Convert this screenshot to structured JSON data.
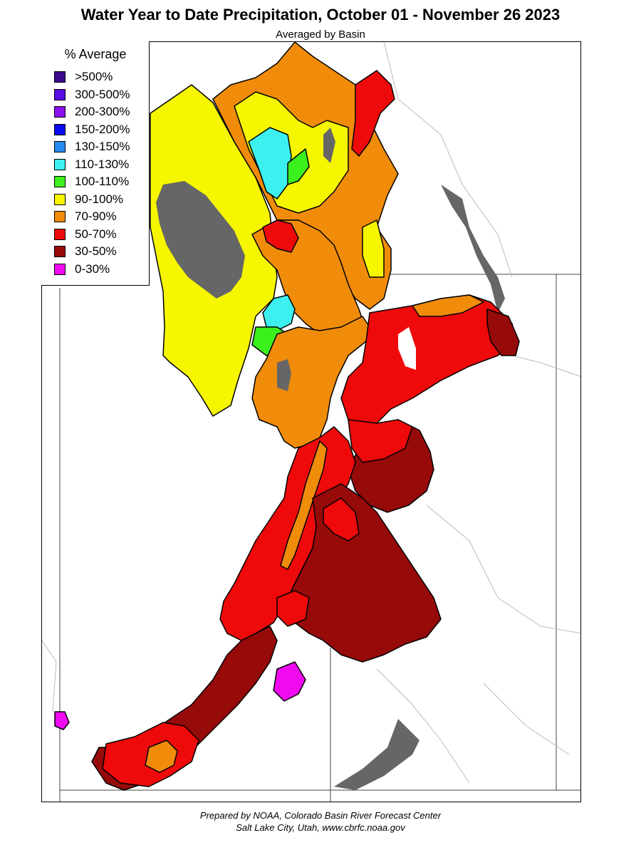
{
  "header": {
    "title": "Water Year to Date Precipitation, October 01  - November 26 2023",
    "subtitle": "Averaged by Basin"
  },
  "legend": {
    "title": "% Average",
    "items": [
      {
        "label": ">500%",
        "color": "#3a0a8c"
      },
      {
        "label": "300-500%",
        "color": "#5a0ee6"
      },
      {
        "label": "200-300%",
        "color": "#8a10f0"
      },
      {
        "label": "150-200%",
        "color": "#0a0af0"
      },
      {
        "label": "130-150%",
        "color": "#2a8cf0"
      },
      {
        "label": "110-130%",
        "color": "#3cf0f0"
      },
      {
        "label": "100-110%",
        "color": "#3cf01e"
      },
      {
        "label": "90-100%",
        "color": "#f6f600"
      },
      {
        "label": "70-90%",
        "color": "#f08c0a"
      },
      {
        "label": "50-70%",
        "color": "#ee0a0a"
      },
      {
        "label": "30-50%",
        "color": "#960a0a"
      },
      {
        "label": "0-30%",
        "color": "#f00af0"
      }
    ]
  },
  "map": {
    "nodata_color": "#666666"
  },
  "footer": {
    "line1": "Prepared by NOAA, Colorado Basin River Forecast Center",
    "line2": "Salt Lake City, Utah, www.cbrfc.noaa.gov"
  }
}
